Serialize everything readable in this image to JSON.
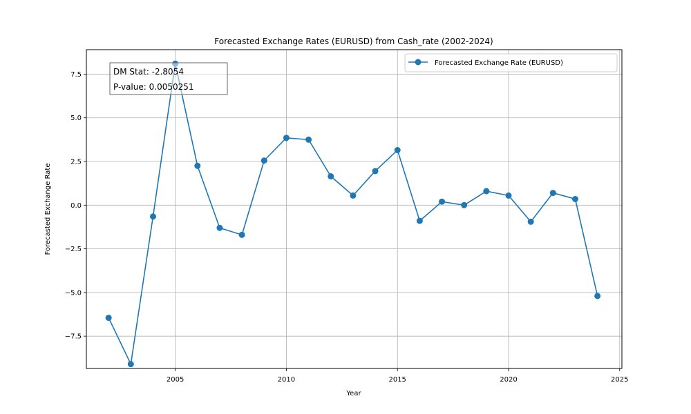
{
  "chart_data": {
    "type": "line",
    "title": "Forecasted Exchange Rates (EURUSD) from Cash_rate (2002-2024)",
    "xlabel": "Year",
    "ylabel": "Forecasted Exchange Rate",
    "xlim": [
      2001,
      2025.1
    ],
    "ylim": [
      -9.35,
      8.9
    ],
    "xticks": [
      2005,
      2010,
      2015,
      2020,
      2025
    ],
    "xtick_labels": [
      "2005",
      "2010",
      "2015",
      "2020",
      "2025"
    ],
    "yticks": [
      -7.5,
      -5.0,
      -2.5,
      0.0,
      2.5,
      5.0,
      7.5
    ],
    "ytick_labels": [
      "−7.5",
      "−5.0",
      "−2.5",
      "0.0",
      "2.5",
      "5.0",
      "7.5"
    ],
    "grid": true,
    "legend_position": "top-right",
    "series": [
      {
        "name": "Forecasted Exchange Rate (EURUSD)",
        "color": "#1f77b4",
        "x": [
          2002,
          2003,
          2004,
          2005,
          2006,
          2007,
          2008,
          2009,
          2010,
          2011,
          2012,
          2013,
          2014,
          2015,
          2016,
          2017,
          2018,
          2019,
          2020,
          2021,
          2022,
          2023,
          2024
        ],
        "y": [
          -6.45,
          -9.1,
          -0.65,
          8.1,
          2.25,
          -1.3,
          -1.7,
          2.55,
          3.85,
          3.75,
          1.65,
          0.55,
          1.95,
          3.15,
          -0.9,
          0.2,
          0.0,
          0.8,
          0.55,
          -0.95,
          0.7,
          0.35,
          -5.2
        ]
      }
    ],
    "annotation": {
      "lines": [
        "DM Stat: -2.8054",
        "P-value: 0.0050251"
      ]
    }
  }
}
